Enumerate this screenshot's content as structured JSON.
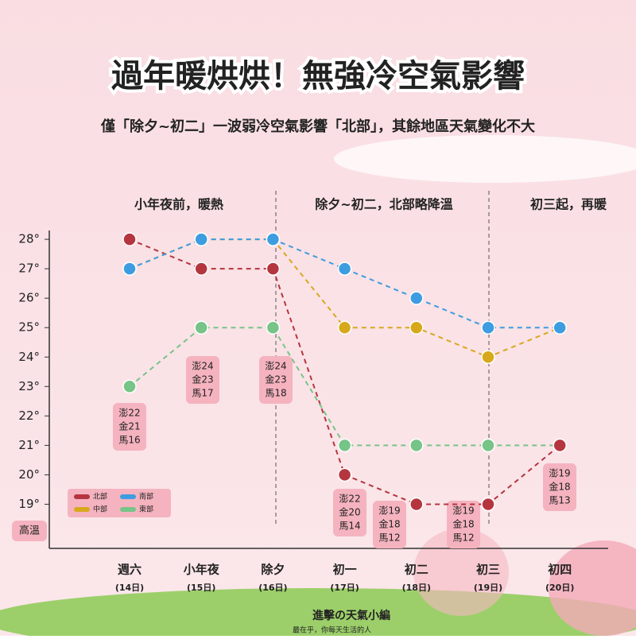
{
  "chart_data": {
    "type": "line",
    "title": "過年暖烘烘！無強冷空氣影響",
    "subtitle": "僅「除夕~初二」一波弱冷空氣影響「北部」，其餘地區天氣變化不大",
    "annotations": [
      "小年夜前，暖熱",
      "除夕~初二，北部略降溫",
      "初三起，再暖"
    ],
    "y_label": "高溫",
    "categories": [
      "週六",
      "小年夜",
      "除夕",
      "初一",
      "初二",
      "初三",
      "初四"
    ],
    "dates": [
      "(14日)",
      "(15日)",
      "(16日)",
      "(17日)",
      "(18日)",
      "(19日)",
      "(20日)"
    ],
    "series": [
      {
        "name": "北部",
        "color": "#b5353f",
        "values": [
          28,
          27,
          27,
          20,
          19,
          19,
          21
        ]
      },
      {
        "name": "中部",
        "color": "#d8a81c",
        "values": [
          27,
          28,
          28,
          25,
          25,
          24,
          25
        ]
      },
      {
        "name": "南部",
        "color": "#3d9de0",
        "values": [
          27,
          28,
          28,
          27,
          26,
          25,
          25
        ]
      },
      {
        "name": "東部",
        "color": "#76c487",
        "values": [
          23,
          25,
          25,
          21,
          21,
          21,
          21
        ]
      }
    ],
    "island_notes": [
      [
        "澎22",
        "金21",
        "馬16"
      ],
      [
        "澎24",
        "金23",
        "馬17"
      ],
      [
        "澎24",
        "金23",
        "馬18"
      ],
      [
        "澎22",
        "金20",
        "馬14"
      ],
      [
        "澎19",
        "金18",
        "馬12"
      ],
      [
        "澎19",
        "金18",
        "馬12"
      ],
      [
        "澎19",
        "金18",
        "馬13"
      ]
    ],
    "ylim": [
      17.5,
      28.3
    ],
    "yticks": [
      {
        "value": 19,
        "label": "19°"
      },
      {
        "value": 20,
        "label": "20°"
      },
      {
        "value": 21,
        "label": "21°"
      },
      {
        "value": 22,
        "label": "22°"
      },
      {
        "value": 23,
        "label": "23°"
      },
      {
        "value": 24,
        "label": "24°"
      },
      {
        "value": 25,
        "label": "25°"
      },
      {
        "value": 26,
        "label": "26°"
      },
      {
        "value": 27,
        "label": "27°"
      },
      {
        "value": 28,
        "label": "28°"
      }
    ],
    "legend": "bottom-left",
    "brand": "進擊の天氣小編",
    "slogan": "最在乎，你每天生活的人"
  }
}
